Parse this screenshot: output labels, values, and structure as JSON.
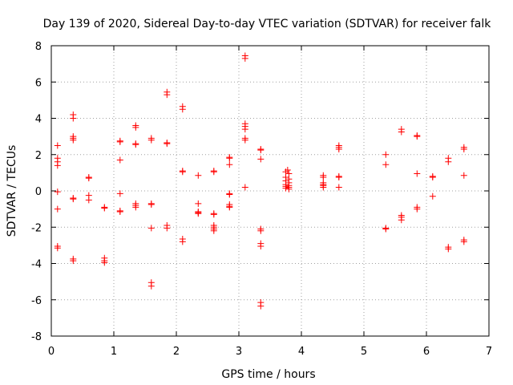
{
  "chart_data": {
    "type": "scatter",
    "title": "Day 139 of 2020, Sidereal Day-to-day VTEC variation (SDTVAR) for receiver falk",
    "xlabel": "GPS time / hours",
    "ylabel": "SDTVAR / TECUs",
    "xlim": [
      0,
      7
    ],
    "ylim": [
      -8,
      8
    ],
    "xticks": [
      0,
      1,
      2,
      3,
      4,
      5,
      6,
      7
    ],
    "yticks": [
      -8,
      -6,
      -4,
      -2,
      0,
      2,
      4,
      6,
      8
    ],
    "grid": true,
    "marker": "plus",
    "color": "#ff0000",
    "series": [
      {
        "name": "SDTVAR",
        "points": [
          [
            0.1,
            2.5
          ],
          [
            0.1,
            1.8
          ],
          [
            0.1,
            1.6
          ],
          [
            0.1,
            1.4
          ],
          [
            0.1,
            -0.05
          ],
          [
            0.1,
            -1.0
          ],
          [
            0.1,
            -3.05
          ],
          [
            0.1,
            -3.15
          ],
          [
            0.35,
            4.2
          ],
          [
            0.35,
            4.0
          ],
          [
            0.35,
            3.0
          ],
          [
            0.35,
            2.9
          ],
          [
            0.35,
            2.8
          ],
          [
            0.35,
            -0.4
          ],
          [
            0.35,
            -0.45
          ],
          [
            0.35,
            -3.75
          ],
          [
            0.35,
            -3.85
          ],
          [
            0.6,
            0.75
          ],
          [
            0.6,
            0.7
          ],
          [
            0.6,
            -0.25
          ],
          [
            0.6,
            -0.5
          ],
          [
            0.85,
            -0.9
          ],
          [
            0.85,
            -0.95
          ],
          [
            0.85,
            -3.7
          ],
          [
            0.85,
            -3.85
          ],
          [
            0.85,
            -3.95
          ],
          [
            1.1,
            2.75
          ],
          [
            1.1,
            2.7
          ],
          [
            1.1,
            1.7
          ],
          [
            1.1,
            -0.15
          ],
          [
            1.1,
            -1.1
          ],
          [
            1.1,
            -1.15
          ],
          [
            1.35,
            3.6
          ],
          [
            1.35,
            3.5
          ],
          [
            1.35,
            2.6
          ],
          [
            1.35,
            2.55
          ],
          [
            1.35,
            -0.7
          ],
          [
            1.35,
            -0.8
          ],
          [
            1.35,
            -0.9
          ],
          [
            1.6,
            2.9
          ],
          [
            1.6,
            2.8
          ],
          [
            1.6,
            -0.7
          ],
          [
            1.6,
            -0.75
          ],
          [
            1.6,
            -2.05
          ],
          [
            1.6,
            -5.05
          ],
          [
            1.6,
            -5.25
          ],
          [
            1.85,
            5.45
          ],
          [
            1.85,
            5.3
          ],
          [
            1.85,
            2.65
          ],
          [
            1.85,
            2.6
          ],
          [
            1.85,
            -1.9
          ],
          [
            1.85,
            -2.05
          ],
          [
            2.1,
            4.65
          ],
          [
            2.1,
            4.5
          ],
          [
            2.1,
            1.1
          ],
          [
            2.1,
            1.05
          ],
          [
            2.1,
            -2.65
          ],
          [
            2.1,
            -2.8
          ],
          [
            2.35,
            0.85
          ],
          [
            2.35,
            -0.7
          ],
          [
            2.35,
            -1.15
          ],
          [
            2.35,
            -1.2
          ],
          [
            2.35,
            -1.25
          ],
          [
            2.6,
            1.1
          ],
          [
            2.6,
            1.05
          ],
          [
            2.6,
            -1.25
          ],
          [
            2.6,
            -1.3
          ],
          [
            2.6,
            -1.9
          ],
          [
            2.6,
            -2.0
          ],
          [
            2.6,
            -2.1
          ],
          [
            2.6,
            -2.2
          ],
          [
            2.85,
            1.85
          ],
          [
            2.85,
            1.8
          ],
          [
            2.85,
            1.45
          ],
          [
            2.85,
            -0.15
          ],
          [
            2.85,
            -0.2
          ],
          [
            2.85,
            -0.75
          ],
          [
            2.85,
            -0.85
          ],
          [
            2.85,
            -0.9
          ],
          [
            3.1,
            7.45
          ],
          [
            3.1,
            7.3
          ],
          [
            3.1,
            3.7
          ],
          [
            3.1,
            3.55
          ],
          [
            3.1,
            3.4
          ],
          [
            3.1,
            2.9
          ],
          [
            3.1,
            2.8
          ],
          [
            3.1,
            0.2
          ],
          [
            3.35,
            2.3
          ],
          [
            3.35,
            2.25
          ],
          [
            3.35,
            1.75
          ],
          [
            3.35,
            -2.1
          ],
          [
            3.35,
            -2.2
          ],
          [
            3.35,
            -2.9
          ],
          [
            3.35,
            -3.05
          ],
          [
            3.35,
            -6.15
          ],
          [
            3.35,
            -6.35
          ],
          [
            3.78,
            1.15
          ],
          [
            3.75,
            1.05
          ],
          [
            3.8,
            0.95
          ],
          [
            3.75,
            0.75
          ],
          [
            3.8,
            0.65
          ],
          [
            3.75,
            0.55
          ],
          [
            3.8,
            0.45
          ],
          [
            3.75,
            0.35
          ],
          [
            3.8,
            0.3
          ],
          [
            3.75,
            0.25
          ],
          [
            3.8,
            0.2
          ],
          [
            3.75,
            0.15
          ],
          [
            3.8,
            0.1
          ],
          [
            4.35,
            0.85
          ],
          [
            4.35,
            0.75
          ],
          [
            4.35,
            0.45
          ],
          [
            4.35,
            0.35
          ],
          [
            4.35,
            0.3
          ],
          [
            4.35,
            0.2
          ],
          [
            4.6,
            2.5
          ],
          [
            4.6,
            2.4
          ],
          [
            4.6,
            2.3
          ],
          [
            4.6,
            0.8
          ],
          [
            4.6,
            0.75
          ],
          [
            4.6,
            0.2
          ],
          [
            5.35,
            2.0
          ],
          [
            5.35,
            1.45
          ],
          [
            5.35,
            -2.05
          ],
          [
            5.35,
            -2.1
          ],
          [
            5.6,
            3.4
          ],
          [
            5.6,
            3.25
          ],
          [
            5.6,
            -1.35
          ],
          [
            5.6,
            -1.45
          ],
          [
            5.6,
            -1.6
          ],
          [
            5.85,
            3.05
          ],
          [
            5.85,
            3.0
          ],
          [
            5.85,
            0.95
          ],
          [
            5.85,
            -0.9
          ],
          [
            5.85,
            -1.0
          ],
          [
            6.1,
            0.8
          ],
          [
            6.1,
            0.75
          ],
          [
            6.1,
            -0.3
          ],
          [
            6.35,
            1.8
          ],
          [
            6.35,
            1.6
          ],
          [
            6.35,
            -3.1
          ],
          [
            6.35,
            -3.2
          ],
          [
            6.6,
            2.4
          ],
          [
            6.6,
            2.3
          ],
          [
            6.6,
            0.85
          ],
          [
            6.6,
            -2.7
          ],
          [
            6.6,
            -2.8
          ]
        ]
      }
    ]
  }
}
